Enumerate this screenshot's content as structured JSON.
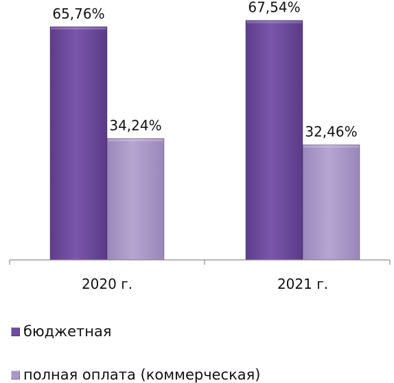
{
  "chart_data": {
    "type": "bar",
    "categories": [
      "2020 г.",
      "2021 г."
    ],
    "series": [
      {
        "name": "бюджетная",
        "values": [
          65.76,
          67.54
        ],
        "labels": [
          "65,76%",
          "67,54%"
        ],
        "color": "#6f4c9e"
      },
      {
        "name": "полная оплата (коммерческая)",
        "values": [
          34.24,
          32.46
        ],
        "labels": [
          "34,24%",
          "32,46%"
        ],
        "color": "#a997c6"
      }
    ],
    "ylim": [
      0,
      70
    ],
    "grid": false,
    "legend_position": "bottom"
  }
}
